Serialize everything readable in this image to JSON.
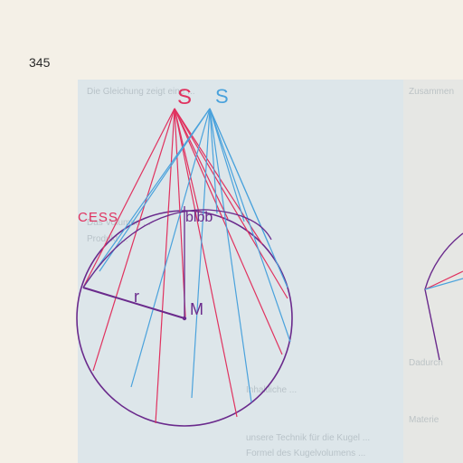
{
  "page": {
    "number": "345"
  },
  "figure": {
    "apex_red": "S",
    "apex_blue": "S",
    "label_cess": "CESS",
    "label_arc": "blbb",
    "label_radius": "r",
    "label_center": "M",
    "colors": {
      "red": "#e0325f",
      "blue": "#4aa2dc",
      "circle": "#6a2a8c"
    }
  },
  "background_text": {
    "l1": "Die Gleichung zeigt eine ...",
    "l2": "Das Volumen ...",
    "l3": "Produkt ...",
    "l4": "Inhaltliche ...",
    "l5": "unsere Technik für die Kugel ...",
    "l6": "Formel des Kugelvolumens ...",
    "r1": "Zusammen",
    "r2": "Dadurch",
    "r3": "Materie"
  }
}
